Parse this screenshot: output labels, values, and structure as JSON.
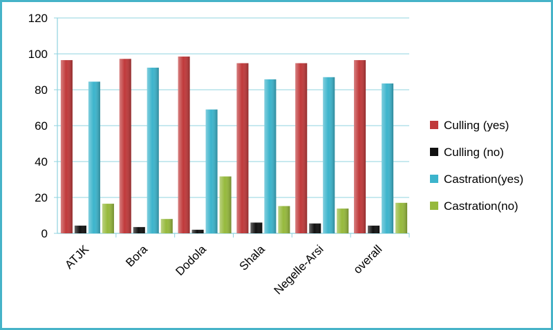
{
  "chart_data": {
    "type": "bar",
    "categories": [
      "ATJK",
      "Bora",
      "Dodola",
      "Shala",
      "Negelle-Arsi",
      "overall"
    ],
    "series": [
      {
        "name": "Culling (yes)",
        "color": "#c0393a",
        "values": [
          96.5,
          97.2,
          98.5,
          94.8,
          94.8,
          96.5
        ]
      },
      {
        "name": "Culling (no)",
        "color": "#111111",
        "values": [
          4.3,
          3.5,
          2.0,
          6.0,
          5.5,
          4.3
        ]
      },
      {
        "name": "Castration(yes)",
        "color": "#3cb4cc",
        "values": [
          84.5,
          92.3,
          69.0,
          85.8,
          87.0,
          83.5
        ]
      },
      {
        "name": "Castration(no)",
        "color": "#96b93c",
        "values": [
          16.5,
          8.0,
          31.7,
          15.2,
          13.8,
          17.0
        ]
      }
    ],
    "yticks": [
      "0",
      "20",
      "40",
      "60",
      "80",
      "100",
      "120"
    ],
    "ylim": [
      0,
      120
    ],
    "grid": true,
    "legend": "right",
    "title": "",
    "xlabel": "",
    "ylabel": ""
  }
}
